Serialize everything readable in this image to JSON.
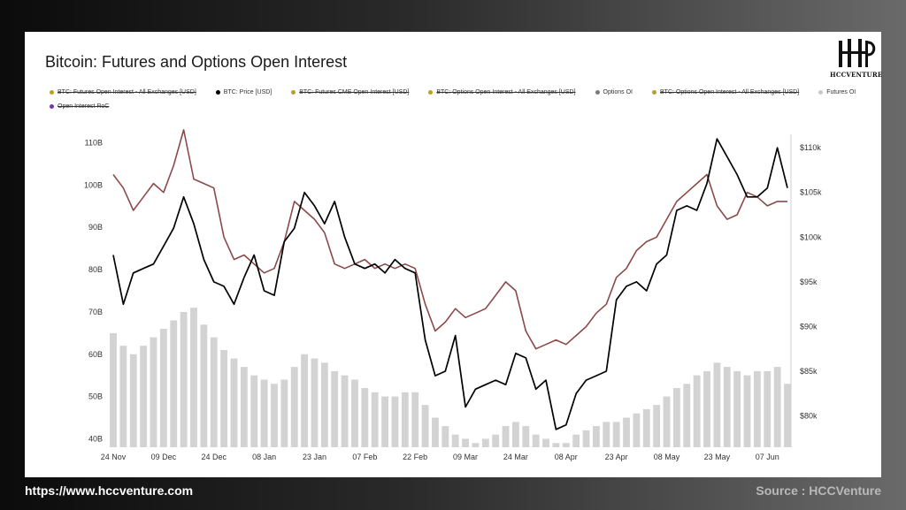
{
  "title": "Bitcoin: Futures and Options Open Interest",
  "logo_text": "HCCVENTURE",
  "footer": {
    "url": "https://www.hccventure.com",
    "source": "Source : HCCVenture"
  },
  "colors": {
    "price": "#000000",
    "futures_oi": "#d3d3d3",
    "options_oi": "#8b4a4a",
    "legend_gold": "#b8a02a",
    "legend_options": "#7a7a7a",
    "legend_roc": "#6a3aa8"
  },
  "legend": [
    {
      "label": "BTC: Futures Open Interest - All Exchanges [USD]",
      "color": "#b8a02a",
      "active": false,
      "row": 1
    },
    {
      "label": "BTC: Price [USD]",
      "color": "#000000",
      "active": true,
      "row": 1
    },
    {
      "label": "BTC: Futures CME Open Interest [USD]",
      "color": "#b8a02a",
      "active": false,
      "row": 1
    },
    {
      "label": "BTC: Options Open Interest - All Exchanges [USD]",
      "color": "#b8a02a",
      "active": false,
      "row": 1
    },
    {
      "label": "Options OI",
      "color": "#7a7a7a",
      "active": true,
      "row": 1
    },
    {
      "label": "BTC: Options Open Interest - All Exchanges [USD]",
      "color": "#b8a02a",
      "active": false,
      "row": 1
    },
    {
      "label": "Futures OI",
      "color": "#c8c8c8",
      "active": true,
      "row": 1
    },
    {
      "label": "Open Interest RoC",
      "color": "#6a3aa8",
      "active": false,
      "row": 2
    }
  ],
  "chart_data": {
    "type": "line",
    "x_ticks": [
      "24 Nov",
      "09 Dec",
      "24 Dec",
      "08 Jan",
      "23 Jan",
      "07 Feb",
      "22 Feb",
      "09 Mar",
      "24 Mar",
      "08 Apr",
      "23 Apr",
      "08 May",
      "23 May",
      "07 Jun"
    ],
    "left_ticks": [
      "110B",
      "100B",
      "90B",
      "80B",
      "70B",
      "60B",
      "50B",
      "40B"
    ],
    "right_ticks": [
      "$110k",
      "$105k",
      "$100k",
      "$95k",
      "$90k",
      "$85k",
      "$80k"
    ],
    "ylim_left": [
      38,
      112
    ],
    "ylim_right": [
      76500,
      111500
    ],
    "x": [
      "24 Nov",
      "27 Nov",
      "30 Nov",
      "03 Dec",
      "06 Dec",
      "09 Dec",
      "12 Dec",
      "15 Dec",
      "18 Dec",
      "21 Dec",
      "24 Dec",
      "27 Dec",
      "30 Dec",
      "02 Jan",
      "05 Jan",
      "08 Jan",
      "11 Jan",
      "14 Jan",
      "17 Jan",
      "20 Jan",
      "23 Jan",
      "26 Jan",
      "29 Jan",
      "01 Feb",
      "04 Feb",
      "07 Feb",
      "10 Feb",
      "13 Feb",
      "16 Feb",
      "19 Feb",
      "22 Feb",
      "25 Feb",
      "28 Feb",
      "03 Mar",
      "06 Mar",
      "09 Mar",
      "12 Mar",
      "15 Mar",
      "18 Mar",
      "21 Mar",
      "24 Mar",
      "27 Mar",
      "30 Mar",
      "02 Apr",
      "05 Apr",
      "08 Apr",
      "11 Apr",
      "14 Apr",
      "17 Apr",
      "20 Apr",
      "23 Apr",
      "26 Apr",
      "29 Apr",
      "02 May",
      "05 May",
      "08 May",
      "11 May",
      "14 May",
      "17 May",
      "20 May",
      "23 May",
      "26 May",
      "29 May",
      "01 Jun",
      "04 Jun",
      "07 Jun",
      "10 Jun",
      "13 Jun"
    ],
    "series": [
      {
        "name": "BTC: Price [USD]",
        "axis": "right",
        "color": "#000000",
        "values": [
          98000,
          92500,
          96000,
          96500,
          97000,
          99000,
          101000,
          104500,
          101500,
          97500,
          95000,
          94500,
          92500,
          95500,
          98000,
          94000,
          93500,
          99500,
          101000,
          105000,
          103500,
          101500,
          104000,
          100000,
          97000,
          96500,
          97000,
          96000,
          97500,
          96500,
          96000,
          88500,
          84500,
          85000,
          89000,
          81000,
          83000,
          83500,
          84000,
          83500,
          87000,
          86500,
          83000,
          84000,
          78500,
          79000,
          82500,
          84000,
          84500,
          85000,
          93000,
          94500,
          95000,
          94000,
          97000,
          98000,
          103000,
          103500,
          103000,
          106000,
          111000,
          109000,
          107000,
          104500,
          104500,
          105500,
          110000,
          105500
        ]
      },
      {
        "name": "Options OI",
        "axis": "right",
        "color": "#8b4a4a",
        "values": [
          107000,
          105500,
          103000,
          104500,
          106000,
          105000,
          108000,
          112000,
          106500,
          106000,
          105500,
          100000,
          97500,
          98000,
          97000,
          96000,
          96500,
          99500,
          104000,
          103000,
          102000,
          100500,
          97000,
          96500,
          97000,
          97500,
          96500,
          97000,
          96500,
          97000,
          96500,
          92500,
          89500,
          90500,
          92000,
          91000,
          91500,
          92000,
          93500,
          95000,
          94000,
          89500,
          87500,
          88000,
          88500,
          88000,
          89000,
          90000,
          91500,
          92500,
          95500,
          96500,
          98500,
          99500,
          100000,
          102000,
          104000,
          105000,
          106000,
          107000,
          103500,
          102000,
          102500,
          105000,
          104500,
          103500,
          104000,
          104000
        ]
      },
      {
        "name": "Futures OI",
        "axis": "left",
        "color": "#d3d3d3",
        "values": [
          65,
          62,
          60,
          62,
          64,
          66,
          68,
          70,
          71,
          67,
          64,
          61,
          59,
          57,
          55,
          54,
          53,
          54,
          57,
          60,
          59,
          58,
          56,
          55,
          54,
          52,
          51,
          50,
          50,
          51,
          51,
          48,
          45,
          43,
          41,
          40,
          39,
          40,
          41,
          43,
          44,
          43,
          41,
          40,
          39,
          39,
          41,
          42,
          43,
          44,
          44,
          45,
          46,
          47,
          48,
          50,
          52,
          53,
          55,
          56,
          58,
          57,
          56,
          55,
          56,
          56,
          57,
          53
        ]
      }
    ]
  }
}
